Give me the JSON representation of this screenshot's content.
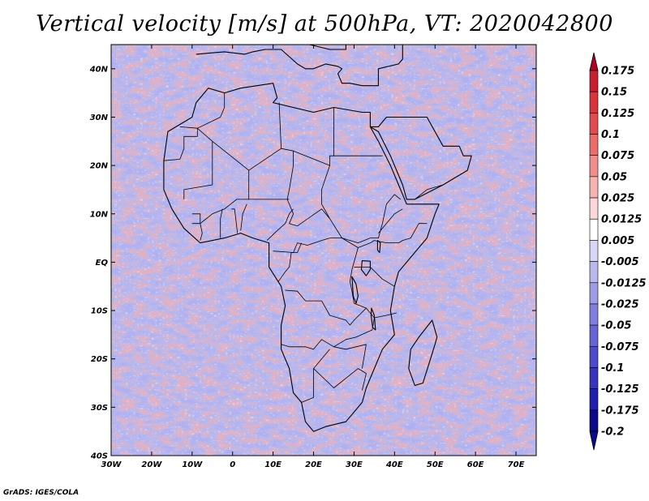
{
  "title": "Vertical velocity [m/s] at 500hPa, VT: 2020042800",
  "credit": "GrADS: IGES/COLA",
  "map": {
    "lon_range": [
      -30,
      75
    ],
    "lat_range": [
      -40,
      45
    ],
    "lat_ticks": [
      {
        "value": 40,
        "label": "40N"
      },
      {
        "value": 30,
        "label": "30N"
      },
      {
        "value": 20,
        "label": "20N"
      },
      {
        "value": 10,
        "label": "10N"
      },
      {
        "value": 0,
        "label": "EQ"
      },
      {
        "value": -10,
        "label": "10S"
      },
      {
        "value": -20,
        "label": "20S"
      },
      {
        "value": -30,
        "label": "30S"
      },
      {
        "value": -40,
        "label": "40S"
      }
    ],
    "lon_ticks": [
      {
        "value": -30,
        "label": "30W"
      },
      {
        "value": -20,
        "label": "20W"
      },
      {
        "value": -10,
        "label": "10W"
      },
      {
        "value": 0,
        "label": "0"
      },
      {
        "value": 10,
        "label": "10E"
      },
      {
        "value": 20,
        "label": "20E"
      },
      {
        "value": 30,
        "label": "30E"
      },
      {
        "value": 40,
        "label": "40E"
      },
      {
        "value": 50,
        "label": "50E"
      },
      {
        "value": 60,
        "label": "60E"
      },
      {
        "value": 70,
        "label": "70E"
      }
    ],
    "coastline": [
      [
        -17,
        21
      ],
      [
        -16,
        27
      ],
      [
        -10,
        30
      ],
      [
        -9,
        33
      ],
      [
        -6,
        36
      ],
      [
        -2,
        35
      ],
      [
        2,
        36
      ],
      [
        10,
        37
      ],
      [
        11,
        34
      ],
      [
        10,
        33
      ],
      [
        20,
        31
      ],
      [
        25,
        32
      ],
      [
        32,
        31
      ],
      [
        34,
        31
      ],
      [
        34,
        28
      ],
      [
        36,
        25
      ],
      [
        39,
        20
      ],
      [
        41,
        16
      ],
      [
        43,
        12
      ],
      [
        51,
        12
      ],
      [
        50,
        10
      ],
      [
        48,
        5
      ],
      [
        44,
        1
      ],
      [
        41,
        -2
      ],
      [
        40,
        -5
      ],
      [
        39,
        -10
      ],
      [
        40,
        -15
      ],
      [
        37,
        -18
      ],
      [
        35,
        -22
      ],
      [
        33,
        -26
      ],
      [
        32,
        -29
      ],
      [
        28,
        -33
      ],
      [
        23,
        -34
      ],
      [
        20,
        -35
      ],
      [
        18,
        -33
      ],
      [
        17,
        -29
      ],
      [
        15,
        -27
      ],
      [
        14,
        -22
      ],
      [
        12,
        -18
      ],
      [
        12,
        -13
      ],
      [
        13,
        -9
      ],
      [
        12,
        -5
      ],
      [
        9,
        -1
      ],
      [
        9,
        4
      ],
      [
        5,
        5
      ],
      [
        2,
        6
      ],
      [
        -2,
        5
      ],
      [
        -8,
        4
      ],
      [
        -12,
        7
      ],
      [
        -15,
        11
      ],
      [
        -17,
        15
      ],
      [
        -17,
        21
      ]
    ],
    "arabia": [
      [
        34,
        28
      ],
      [
        36,
        28
      ],
      [
        38,
        30
      ],
      [
        43,
        30
      ],
      [
        48,
        30
      ],
      [
        50,
        27
      ],
      [
        52,
        24
      ],
      [
        56,
        24
      ],
      [
        57,
        22
      ],
      [
        59,
        22
      ],
      [
        58,
        19
      ],
      [
        54,
        17
      ],
      [
        52,
        16
      ],
      [
        45,
        13
      ],
      [
        43,
        13
      ],
      [
        42,
        16
      ],
      [
        39,
        22
      ],
      [
        36,
        27
      ],
      [
        34,
        28
      ]
    ],
    "madagascar": [
      [
        49.3,
        -12
      ],
      [
        50.5,
        -15.5
      ],
      [
        50,
        -17
      ],
      [
        48.5,
        -21
      ],
      [
        47,
        -25
      ],
      [
        45,
        -25.5
      ],
      [
        43.5,
        -22
      ],
      [
        44,
        -18
      ],
      [
        46,
        -15.5
      ],
      [
        49.3,
        -12
      ]
    ],
    "europe": [
      [
        -9,
        43
      ],
      [
        -2,
        43.5
      ],
      [
        3,
        43
      ],
      [
        5,
        43.5
      ],
      [
        8,
        44
      ],
      [
        12,
        44
      ],
      [
        16,
        41
      ],
      [
        18,
        40
      ],
      [
        20,
        40
      ],
      [
        23,
        41
      ],
      [
        26,
        40.5
      ],
      [
        27,
        40
      ],
      [
        26,
        39
      ],
      [
        27,
        37
      ],
      [
        29,
        37
      ],
      [
        32,
        36.5
      ],
      [
        36,
        36.5
      ],
      [
        36,
        40
      ],
      [
        41,
        41
      ],
      [
        42,
        42
      ],
      [
        42,
        45
      ],
      [
        37,
        45
      ],
      [
        34,
        45
      ],
      [
        30,
        45
      ],
      [
        28,
        45
      ],
      [
        28,
        44
      ],
      [
        26,
        44
      ],
      [
        24,
        44
      ],
      [
        19,
        45
      ],
      [
        13,
        45
      ],
      [
        12,
        45
      ]
    ],
    "borders": [
      [
        [
          -13,
          28
        ],
        [
          -8.7,
          27.7
        ],
        [
          -8.7,
          26
        ],
        [
          -12,
          26
        ],
        [
          -12,
          23.5
        ],
        [
          -13,
          21.3
        ],
        [
          -17,
          21
        ]
      ],
      [
        [
          -8.7,
          27.7
        ],
        [
          -3,
          30
        ],
        [
          -2,
          32
        ],
        [
          -2,
          35
        ]
      ],
      [
        [
          -8.7,
          27.7
        ],
        [
          -5,
          25
        ],
        [
          -5,
          16
        ],
        [
          -12,
          15
        ],
        [
          -12,
          13
        ]
      ],
      [
        [
          -5,
          25
        ],
        [
          4,
          19
        ],
        [
          12,
          23.5
        ],
        [
          11.5,
          33
        ]
      ],
      [
        [
          12,
          23.5
        ],
        [
          15,
          23
        ],
        [
          24,
          20
        ],
        [
          24,
          22
        ],
        [
          25,
          22
        ]
      ],
      [
        [
          25,
          22
        ],
        [
          25,
          32
        ]
      ],
      [
        [
          25,
          22
        ],
        [
          37,
          22
        ]
      ],
      [
        [
          24,
          20
        ],
        [
          22,
          15
        ],
        [
          22,
          12
        ],
        [
          24,
          9
        ],
        [
          27,
          5
        ],
        [
          31,
          4
        ],
        [
          34,
          5
        ],
        [
          36,
          5
        ],
        [
          37,
          8
        ],
        [
          38,
          12
        ],
        [
          40,
          14
        ],
        [
          41.5,
          13
        ]
      ],
      [
        [
          15,
          23
        ],
        [
          15,
          20
        ],
        [
          14,
          15
        ],
        [
          13.5,
          13
        ],
        [
          15,
          10
        ],
        [
          14,
          8
        ],
        [
          16,
          7.5
        ],
        [
          22,
          11
        ],
        [
          24,
          9
        ]
      ],
      [
        [
          4,
          19
        ],
        [
          4,
          13
        ],
        [
          1,
          13
        ],
        [
          -2,
          11
        ],
        [
          -5,
          10
        ],
        [
          -8,
          8
        ],
        [
          -10,
          8
        ]
      ],
      [
        [
          14,
          13
        ],
        [
          12,
          13
        ],
        [
          8,
          13
        ],
        [
          4,
          13
        ]
      ],
      [
        [
          2,
          6.5
        ],
        [
          2.5,
          10
        ],
        [
          3.5,
          12
        ]
      ],
      [
        [
          1.2,
          6
        ],
        [
          0.5,
          11
        ],
        [
          -0.3,
          11
        ]
      ],
      [
        [
          -3,
          5
        ],
        [
          -3,
          9
        ],
        [
          -2.5,
          11
        ]
      ],
      [
        [
          -8,
          4.5
        ],
        [
          -7.5,
          6
        ],
        [
          -8,
          8
        ],
        [
          -8,
          10
        ],
        [
          -10,
          10
        ]
      ],
      [
        [
          8.5,
          4.5
        ],
        [
          11,
          6.5
        ],
        [
          13,
          8
        ],
        [
          14,
          10
        ],
        [
          15,
          11
        ]
      ],
      [
        [
          10,
          2.3
        ],
        [
          15,
          2
        ],
        [
          16,
          4
        ],
        [
          18.5,
          3.5
        ],
        [
          22,
          4.5
        ],
        [
          24,
          5
        ],
        [
          27,
          5
        ]
      ],
      [
        [
          11.3,
          -4
        ],
        [
          13,
          -2
        ],
        [
          14,
          -1
        ],
        [
          14.5,
          2
        ],
        [
          16,
          2
        ],
        [
          17,
          4
        ]
      ],
      [
        [
          27,
          5
        ],
        [
          30,
          3.5
        ],
        [
          31,
          3
        ],
        [
          30,
          0
        ],
        [
          29.5,
          -1.5
        ],
        [
          29,
          -4
        ],
        [
          29.5,
          -6
        ],
        [
          30,
          -8.5
        ],
        [
          33,
          -9.5
        ],
        [
          35,
          -11.5
        ],
        [
          34.5,
          -14
        ],
        [
          30.5,
          -15.5
        ],
        [
          28,
          -16
        ],
        [
          25,
          -17.5
        ],
        [
          22,
          -16
        ],
        [
          20,
          -18
        ],
        [
          18,
          -17.5
        ],
        [
          14,
          -17.5
        ],
        [
          12,
          -17
        ]
      ],
      [
        [
          13,
          -5.8
        ],
        [
          16,
          -6
        ],
        [
          18,
          -8
        ],
        [
          22,
          -8
        ],
        [
          24,
          -11
        ],
        [
          28,
          -12
        ],
        [
          29,
          -13
        ],
        [
          30,
          -12
        ],
        [
          33,
          -9.5
        ]
      ],
      [
        [
          31,
          3
        ],
        [
          34,
          4
        ],
        [
          35,
          4.5
        ],
        [
          38,
          4
        ],
        [
          41,
          4
        ],
        [
          42,
          4.5
        ],
        [
          44,
          5
        ],
        [
          46,
          8
        ],
        [
          48,
          8
        ]
      ],
      [
        [
          30,
          -1
        ],
        [
          34,
          -1
        ],
        [
          37,
          -3.5
        ],
        [
          40,
          -5
        ]
      ],
      [
        [
          35,
          -11.5
        ],
        [
          38,
          -11
        ],
        [
          40.5,
          -10.5
        ]
      ],
      [
        [
          24,
          -18
        ],
        [
          20,
          -22
        ],
        [
          20,
          -28
        ],
        [
          17,
          -29
        ]
      ],
      [
        [
          20,
          -22
        ],
        [
          25,
          -26
        ],
        [
          28,
          -24
        ],
        [
          31,
          -22
        ],
        [
          33,
          -23
        ],
        [
          32,
          -26.5
        ]
      ],
      [
        [
          25,
          -17.5
        ],
        [
          28,
          -18
        ],
        [
          33,
          -17
        ],
        [
          32,
          -22
        ]
      ],
      [
        [
          36,
          6
        ],
        [
          40,
          10
        ],
        [
          42,
          11
        ]
      ],
      [
        [
          45,
          13
        ],
        [
          48,
          15
        ],
        [
          52,
          16
        ]
      ]
    ],
    "lakes": [
      [
        [
          32,
          0.3
        ],
        [
          34,
          0.2
        ],
        [
          34,
          -1.5
        ],
        [
          33,
          -2.8
        ],
        [
          31.8,
          -1.5
        ],
        [
          32,
          0.3
        ]
      ],
      [
        [
          29.5,
          -3
        ],
        [
          30.5,
          -4.5
        ],
        [
          31,
          -7
        ],
        [
          30.5,
          -8.5
        ],
        [
          29.8,
          -7
        ],
        [
          29.5,
          -3
        ]
      ],
      [
        [
          34.3,
          -9.5
        ],
        [
          35,
          -11
        ],
        [
          35.3,
          -14
        ],
        [
          34.6,
          -13.5
        ],
        [
          34.2,
          -11
        ],
        [
          34.3,
          -9.5
        ]
      ],
      [
        [
          35.8,
          4.5
        ],
        [
          36.5,
          4
        ],
        [
          36.3,
          2
        ],
        [
          35.8,
          2.5
        ],
        [
          35.8,
          4.5
        ]
      ]
    ],
    "colorbar": {
      "labels": [
        "0.175",
        "0.15",
        "0.125",
        "0.1",
        "0.075",
        "0.05",
        "0.025",
        "0.0125",
        "0.005",
        "-0.005",
        "-0.0125",
        "-0.025",
        "-0.05",
        "-0.075",
        "-0.1",
        "-0.125",
        "-0.175",
        "-0.2"
      ],
      "colors": [
        "#b00028",
        "#c81e2d",
        "#d8343a",
        "#e34c4e",
        "#ec6c6a",
        "#f28d8c",
        "#f7b2b1",
        "#fbd8d7",
        "#ffffff",
        "#d8d8f6",
        "#b9b9f0",
        "#9c9ce8",
        "#7f7fe0",
        "#6565d6",
        "#4b4bcb",
        "#3434bd",
        "#2020ae",
        "#0a0a8a"
      ]
    }
  }
}
